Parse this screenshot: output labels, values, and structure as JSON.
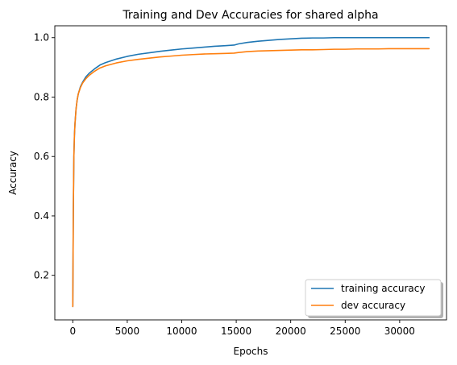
{
  "chart_data": {
    "type": "line",
    "title": "Training and Dev Accuracies for shared alpha",
    "xlabel": "Epochs",
    "ylabel": "Accuracy",
    "xlim": [
      -1650,
      34300
    ],
    "ylim": [
      0.05,
      1.04
    ],
    "xticks": [
      0,
      5000,
      10000,
      15000,
      20000,
      25000,
      30000
    ],
    "yticks": [
      0.2,
      0.4,
      0.6,
      0.8,
      1.0
    ],
    "ytick_labels": [
      "0.2",
      "0.4",
      "0.6",
      "0.8",
      "1.0"
    ],
    "grid": false,
    "legend_position": "lower-right",
    "series": [
      {
        "name": "training accuracy",
        "color": "#1f77b4",
        "x": [
          0,
          50,
          100,
          150,
          200,
          300,
          400,
          500,
          700,
          900,
          1200,
          1500,
          2000,
          2500,
          3000,
          4000,
          5000,
          6000,
          7000,
          8000,
          9000,
          10000,
          11000,
          12000,
          13000,
          14000,
          14800,
          15200,
          16000,
          17000,
          18000,
          19000,
          20000,
          21000,
          22000,
          23000,
          24000,
          25000,
          26000,
          27000,
          28000,
          29000,
          30000,
          31000,
          32000,
          32700
        ],
        "y": [
          0.095,
          0.42,
          0.6,
          0.67,
          0.71,
          0.76,
          0.79,
          0.81,
          0.835,
          0.85,
          0.868,
          0.88,
          0.895,
          0.908,
          0.916,
          0.928,
          0.937,
          0.944,
          0.949,
          0.954,
          0.958,
          0.962,
          0.965,
          0.968,
          0.971,
          0.973,
          0.975,
          0.979,
          0.984,
          0.988,
          0.991,
          0.994,
          0.996,
          0.998,
          0.999,
          0.999,
          1.0,
          1.0,
          1.0,
          1.0,
          1.0,
          1.0,
          1.0,
          1.0,
          1.0,
          1.0
        ]
      },
      {
        "name": "dev accuracy",
        "color": "#ff7f0e",
        "x": [
          0,
          50,
          100,
          150,
          200,
          300,
          400,
          500,
          700,
          900,
          1200,
          1500,
          2000,
          2500,
          3000,
          4000,
          5000,
          6000,
          7000,
          8000,
          9000,
          10000,
          11000,
          12000,
          13000,
          14000,
          14800,
          15200,
          16000,
          17000,
          18000,
          19000,
          20000,
          21000,
          22000,
          23000,
          24000,
          25000,
          26000,
          27000,
          28000,
          29000,
          30000,
          31000,
          32000,
          32700
        ],
        "y": [
          0.095,
          0.42,
          0.6,
          0.67,
          0.71,
          0.76,
          0.79,
          0.81,
          0.832,
          0.847,
          0.862,
          0.873,
          0.887,
          0.898,
          0.905,
          0.915,
          0.922,
          0.927,
          0.931,
          0.935,
          0.938,
          0.941,
          0.943,
          0.945,
          0.946,
          0.947,
          0.948,
          0.95,
          0.953,
          0.955,
          0.956,
          0.957,
          0.958,
          0.959,
          0.959,
          0.96,
          0.961,
          0.961,
          0.962,
          0.962,
          0.962,
          0.963,
          0.963,
          0.963,
          0.963,
          0.963
        ]
      }
    ]
  }
}
